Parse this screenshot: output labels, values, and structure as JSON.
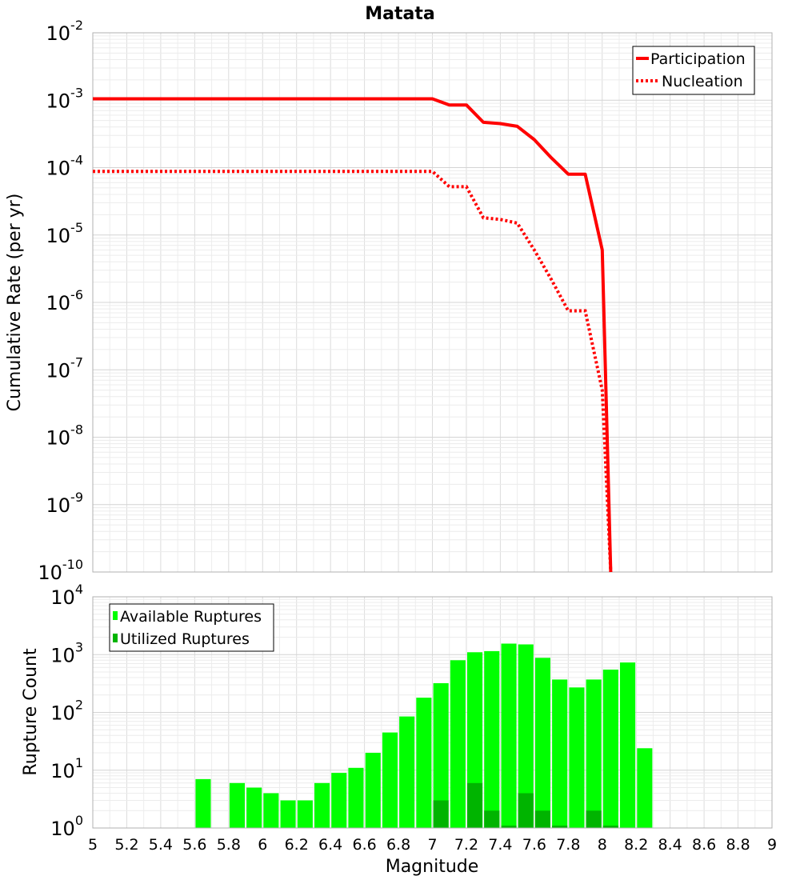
{
  "chart_data": [
    {
      "type": "line",
      "title": "Matata",
      "ylabel": "Cumulative Rate (per yr)",
      "xlim": [
        5,
        9
      ],
      "ylim_log10": [
        -10,
        -2
      ],
      "yscale": "log",
      "grid": true,
      "legend": {
        "placement": "top-right",
        "entries": [
          "Participation",
          "Nucleation"
        ]
      },
      "series": [
        {
          "name": "Participation",
          "color": "#ff0000",
          "style": "solid",
          "x": [
            5.0,
            7.0,
            7.1,
            7.2,
            7.3,
            7.4,
            7.5,
            7.6,
            7.7,
            7.8,
            7.9,
            8.0,
            8.05
          ],
          "y": [
            0.00105,
            0.00105,
            0.00085,
            0.00085,
            0.00047,
            0.00045,
            0.00041,
            0.00026,
            0.00014,
            8e-05,
            8e-05,
            6e-06,
            1e-10
          ]
        },
        {
          "name": "Nucleation",
          "color": "#ff0000",
          "style": "dotted",
          "x": [
            5.0,
            7.0,
            7.1,
            7.2,
            7.3,
            7.4,
            7.5,
            7.6,
            7.7,
            7.8,
            7.9,
            8.0,
            8.05
          ],
          "y": [
            8.8e-05,
            8.8e-05,
            5.2e-05,
            5.2e-05,
            1.8e-05,
            1.7e-05,
            1.5e-05,
            6e-06,
            2.2e-06,
            7.5e-07,
            7.5e-07,
            5e-08,
            1e-10
          ]
        }
      ]
    },
    {
      "type": "bar",
      "xlabel": "Magnitude",
      "ylabel": "Rupture Count",
      "xlim": [
        5,
        9
      ],
      "ylim_log10": [
        0,
        4
      ],
      "yscale": "log",
      "grid": true,
      "bar_width": 0.09,
      "x_ticks": [
        "5",
        "5.2",
        "5.4",
        "5.6",
        "5.8",
        "6",
        "6.2",
        "6.4",
        "6.6",
        "6.8",
        "7",
        "7.2",
        "7.4",
        "7.6",
        "7.8",
        "8",
        "8.2",
        "8.4",
        "8.6",
        "8.8",
        "9"
      ],
      "legend": {
        "placement": "top-left",
        "entries": [
          "Available Ruptures",
          "Utilized Ruptures"
        ]
      },
      "series": [
        {
          "name": "Available Ruptures",
          "color": "#00ff00",
          "x": [
            5.65,
            5.85,
            5.95,
            6.05,
            6.15,
            6.25,
            6.35,
            6.45,
            6.55,
            6.65,
            6.75,
            6.85,
            6.95,
            7.05,
            7.15,
            7.25,
            7.35,
            7.45,
            7.55,
            7.65,
            7.75,
            7.85,
            7.95,
            8.05,
            8.15,
            8.25
          ],
          "values": [
            7,
            6,
            5,
            4,
            3,
            3,
            6,
            9,
            11,
            20,
            45,
            85,
            180,
            320,
            800,
            1100,
            1150,
            1550,
            1500,
            880,
            370,
            270,
            370,
            550,
            730,
            24
          ]
        },
        {
          "name": "Utilized Ruptures",
          "color": "#00b400",
          "x": [
            7.05,
            7.25,
            7.35,
            7.45,
            7.55,
            7.65,
            7.75,
            7.95,
            8.05
          ],
          "values": [
            3,
            6,
            2,
            1.1,
            4,
            2,
            1.1,
            2,
            1.1
          ]
        }
      ]
    }
  ]
}
